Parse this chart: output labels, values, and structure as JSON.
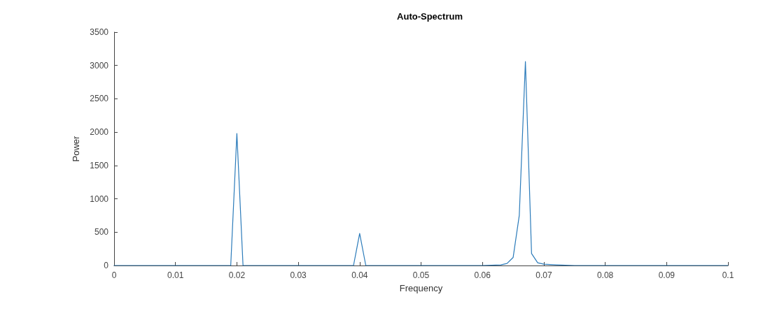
{
  "chart_data": {
    "type": "line",
    "title": "Auto-Spectrum",
    "xlabel": "Frequency",
    "ylabel": "Power",
    "x": [
      0,
      0.019,
      0.02,
      0.021,
      0.039,
      0.04,
      0.041,
      0.06,
      0.063,
      0.064,
      0.065,
      0.066,
      0.067,
      0.068,
      0.069,
      0.07,
      0.072,
      0.075,
      0.1
    ],
    "series": [
      {
        "color": "#2b7bba",
        "values": [
          0,
          0,
          1980,
          0,
          0,
          480,
          0,
          0,
          10,
          30,
          120,
          750,
          3060,
          180,
          40,
          20,
          10,
          0,
          0
        ]
      }
    ],
    "xlim": [
      0,
      0.1
    ],
    "xticks": [
      0,
      0.01,
      0.02,
      0.03,
      0.04,
      0.05,
      0.06,
      0.07,
      0.08,
      0.09,
      0.1
    ],
    "ylim": [
      0,
      3500
    ],
    "yticks": [
      0,
      500,
      1000,
      1500,
      2000,
      2500,
      3000,
      3500
    ],
    "grid": false,
    "marker": "none",
    "line_style": "solid"
  }
}
